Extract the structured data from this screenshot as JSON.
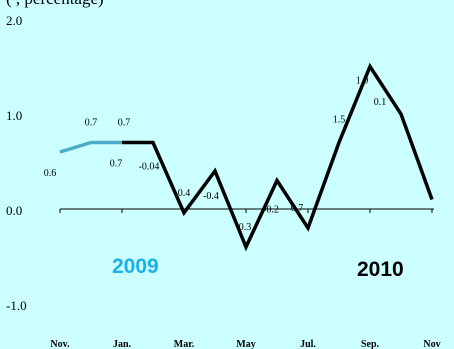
{
  "chart_data": {
    "type": "line",
    "title_fragment": "(                                          , percentage)",
    "ylim": [
      -1.0,
      2.0
    ],
    "y_ticks": [
      "2.0",
      "1.0",
      "0.0",
      "-1.0"
    ],
    "x_tick_labels": [
      "Nov.",
      "Jan.",
      "Mar.",
      "May",
      "Jul.",
      "Sep.",
      "Nov"
    ],
    "series": [
      {
        "name": "2009",
        "color": "#4bacc6",
        "x": [
          "Nov.",
          "Dec.",
          "Jan."
        ],
        "values": [
          0.6,
          0.7,
          0.7
        ]
      },
      {
        "name": "2010",
        "color": "#000000",
        "x": [
          "Jan.",
          "Feb.",
          "Mar.",
          "Apr.",
          "May",
          "Jun.",
          "Jul.",
          "Aug.",
          "Sep.",
          "Oct.",
          "Nov."
        ],
        "values": [
          0.7,
          0.7,
          -0.04,
          0.4,
          -0.4,
          0.3,
          -0.2,
          0.7,
          1.5,
          1.0,
          0.1
        ]
      }
    ],
    "data_labels": [
      "0.6",
      "0.7",
      "0.7",
      "0.7",
      "-0.04",
      "0.4",
      "-0.4",
      "0.3",
      "-0.2",
      "0.7",
      "1.5",
      "1.0",
      "0.1"
    ],
    "year_labels": [
      {
        "text": "2009",
        "color": "#1ab0e8"
      },
      {
        "text": "2010",
        "color": "#000000"
      }
    ]
  }
}
